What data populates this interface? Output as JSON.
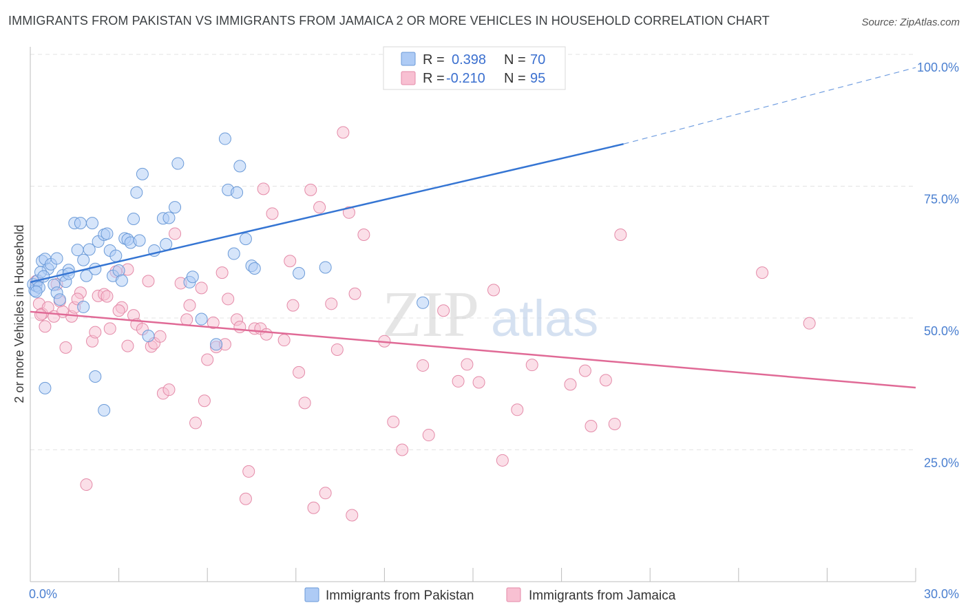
{
  "title": "IMMIGRANTS FROM PAKISTAN VS IMMIGRANTS FROM JAMAICA 2 OR MORE VEHICLES IN HOUSEHOLD CORRELATION CHART",
  "source": "Source: ZipAtlas.com",
  "watermark": {
    "zip": "ZIP",
    "atlas": "atlas"
  },
  "legend_top": {
    "rows": [
      {
        "r_label": "R =",
        "r_value": "0.398",
        "n_label": "N =",
        "n_value": "70"
      },
      {
        "r_label": "R =",
        "r_value": "-0.210",
        "n_label": "N =",
        "n_value": "95"
      }
    ]
  },
  "colors": {
    "pakistan_fill": "#aecbf5",
    "pakistan_stroke": "#6a9ad8",
    "pakistan_line": "#3575d3",
    "jamaica_fill": "#f8c0d2",
    "jamaica_stroke": "#e48aa8",
    "jamaica_line": "#e06a96",
    "tick_label": "#4a7fd0",
    "grid": "#e3e3e3"
  },
  "chart_data": {
    "type": "scatter",
    "title": "IMMIGRANTS FROM PAKISTAN VS IMMIGRANTS FROM JAMAICA 2 OR MORE VEHICLES IN HOUSEHOLD CORRELATION CHART",
    "xlabel": "",
    "ylabel": "2 or more Vehicles in Household",
    "xlim": [
      0,
      30
    ],
    "ylim": [
      0,
      100
    ],
    "x_tick_labels": [
      "0.0%",
      "30.0%"
    ],
    "y_ticks": [
      25,
      50,
      75,
      100
    ],
    "y_tick_labels": [
      "25.0%",
      "50.0%",
      "75.0%",
      "100.0%"
    ],
    "grid": true,
    "legend_position": "bottom",
    "series": [
      {
        "name": "Immigrants from Pakistan",
        "r": 0.398,
        "n": 70,
        "trend": {
          "x": [
            0,
            20.1
          ],
          "y": [
            56.8,
            83.0
          ],
          "dashed_to": [
            30,
            97.5
          ]
        },
        "points": [
          [
            0.1,
            56.4
          ],
          [
            0.15,
            55.2
          ],
          [
            0.2,
            56.1
          ],
          [
            0.25,
            57.1
          ],
          [
            0.3,
            55.8
          ],
          [
            0.4,
            60.8
          ],
          [
            0.5,
            61.2
          ],
          [
            0.6,
            59.3
          ],
          [
            0.7,
            60.2
          ],
          [
            0.8,
            56.3
          ],
          [
            0.9,
            54.8
          ],
          [
            1.0,
            53.5
          ],
          [
            1.1,
            58.1
          ],
          [
            1.2,
            56.9
          ],
          [
            1.3,
            59.1
          ],
          [
            1.5,
            68.0
          ],
          [
            1.6,
            62.9
          ],
          [
            1.7,
            68.0
          ],
          [
            1.8,
            61.0
          ],
          [
            1.9,
            58.0
          ],
          [
            2.0,
            63.0
          ],
          [
            2.1,
            68.0
          ],
          [
            2.2,
            59.3
          ],
          [
            2.3,
            64.5
          ],
          [
            2.5,
            65.8
          ],
          [
            2.6,
            66.0
          ],
          [
            2.7,
            62.8
          ],
          [
            2.8,
            58.0
          ],
          [
            2.9,
            61.8
          ],
          [
            3.0,
            59.0
          ],
          [
            3.1,
            57.1
          ],
          [
            3.2,
            65.1
          ],
          [
            3.3,
            64.9
          ],
          [
            3.4,
            64.3
          ],
          [
            3.5,
            68.8
          ],
          [
            3.6,
            73.8
          ],
          [
            3.7,
            64.7
          ],
          [
            3.8,
            77.3
          ],
          [
            4.0,
            46.6
          ],
          [
            4.2,
            62.8
          ],
          [
            4.5,
            68.9
          ],
          [
            4.6,
            64.0
          ],
          [
            4.7,
            69.0
          ],
          [
            4.9,
            71.0
          ],
          [
            5.0,
            79.3
          ],
          [
            5.4,
            56.8
          ],
          [
            5.5,
            57.8
          ],
          [
            5.8,
            49.8
          ],
          [
            6.3,
            45.0
          ],
          [
            6.6,
            84.0
          ],
          [
            6.7,
            74.3
          ],
          [
            6.9,
            62.2
          ],
          [
            7.0,
            73.8
          ],
          [
            7.1,
            78.8
          ],
          [
            7.3,
            65.0
          ],
          [
            7.5,
            59.9
          ],
          [
            7.6,
            59.4
          ],
          [
            9.1,
            58.5
          ],
          [
            10.0,
            59.6
          ],
          [
            13.3,
            52.9
          ],
          [
            16.2,
            100.0
          ],
          [
            0.5,
            36.7
          ],
          [
            2.2,
            38.9
          ],
          [
            2.5,
            32.5
          ],
          [
            1.8,
            52.1
          ],
          [
            1.3,
            58.4
          ],
          [
            0.9,
            61.3
          ],
          [
            0.35,
            58.7
          ],
          [
            0.45,
            57.9
          ],
          [
            0.2,
            55.0
          ]
        ]
      },
      {
        "name": "Immigrants from Jamaica",
        "r": -0.21,
        "n": 95,
        "trend": {
          "x": [
            0,
            30
          ],
          "y": [
            51.2,
            36.8
          ]
        },
        "points": [
          [
            0.2,
            57.0
          ],
          [
            0.3,
            52.7
          ],
          [
            0.4,
            50.8
          ],
          [
            0.5,
            48.4
          ],
          [
            0.6,
            52.0
          ],
          [
            0.8,
            50.3
          ],
          [
            1.0,
            53.2
          ],
          [
            1.2,
            44.4
          ],
          [
            1.4,
            50.3
          ],
          [
            1.5,
            52.0
          ],
          [
            1.7,
            54.8
          ],
          [
            1.9,
            18.4
          ],
          [
            2.1,
            45.6
          ],
          [
            2.3,
            54.2
          ],
          [
            2.5,
            54.5
          ],
          [
            2.7,
            48.0
          ],
          [
            2.9,
            58.8
          ],
          [
            3.1,
            52.0
          ],
          [
            3.3,
            44.7
          ],
          [
            3.5,
            50.5
          ],
          [
            3.6,
            48.8
          ],
          [
            3.8,
            47.9
          ],
          [
            4.0,
            57.0
          ],
          [
            4.1,
            44.6
          ],
          [
            4.2,
            45.2
          ],
          [
            4.4,
            46.5
          ],
          [
            4.5,
            35.7
          ],
          [
            4.7,
            36.4
          ],
          [
            4.9,
            66.0
          ],
          [
            5.1,
            56.6
          ],
          [
            5.3,
            49.7
          ],
          [
            5.4,
            52.4
          ],
          [
            5.6,
            30.1
          ],
          [
            5.8,
            55.7
          ],
          [
            5.9,
            34.3
          ],
          [
            6.0,
            42.1
          ],
          [
            6.2,
            49.1
          ],
          [
            6.3,
            44.5
          ],
          [
            6.5,
            58.6
          ],
          [
            6.6,
            45.0
          ],
          [
            6.7,
            53.6
          ],
          [
            7.0,
            49.7
          ],
          [
            7.1,
            48.3
          ],
          [
            7.3,
            15.7
          ],
          [
            7.4,
            20.9
          ],
          [
            7.6,
            48.0
          ],
          [
            7.8,
            48.0
          ],
          [
            7.9,
            74.5
          ],
          [
            8.0,
            46.9
          ],
          [
            8.2,
            69.8
          ],
          [
            8.6,
            45.8
          ],
          [
            8.8,
            60.8
          ],
          [
            8.9,
            52.4
          ],
          [
            9.1,
            39.7
          ],
          [
            9.3,
            33.9
          ],
          [
            9.5,
            74.3
          ],
          [
            9.6,
            14.0
          ],
          [
            9.8,
            71.0
          ],
          [
            10.0,
            16.8
          ],
          [
            10.2,
            52.7
          ],
          [
            10.4,
            44.0
          ],
          [
            10.6,
            85.2
          ],
          [
            10.8,
            70.0
          ],
          [
            10.9,
            12.6
          ],
          [
            11.0,
            54.6
          ],
          [
            11.3,
            65.8
          ],
          [
            12.0,
            45.6
          ],
          [
            12.3,
            30.3
          ],
          [
            12.6,
            25.0
          ],
          [
            13.3,
            41.0
          ],
          [
            13.5,
            27.8
          ],
          [
            14.0,
            51.4
          ],
          [
            14.5,
            38.0
          ],
          [
            14.8,
            41.2
          ],
          [
            15.2,
            37.8
          ],
          [
            15.7,
            55.3
          ],
          [
            16.0,
            23.0
          ],
          [
            16.5,
            32.6
          ],
          [
            17.0,
            41.1
          ],
          [
            18.3,
            37.4
          ],
          [
            18.8,
            40.0
          ],
          [
            19.0,
            29.5
          ],
          [
            19.5,
            38.2
          ],
          [
            19.8,
            29.9
          ],
          [
            20.0,
            65.8
          ],
          [
            24.8,
            58.6
          ],
          [
            26.4,
            49.0
          ],
          [
            0.9,
            56.4
          ],
          [
            1.1,
            51.2
          ],
          [
            1.6,
            53.6
          ],
          [
            2.2,
            47.3
          ],
          [
            3.0,
            51.4
          ],
          [
            2.6,
            54.1
          ],
          [
            3.3,
            59.2
          ],
          [
            0.35,
            50.6
          ]
        ]
      }
    ]
  },
  "bottom_legend": [
    {
      "label": "Immigrants from Pakistan"
    },
    {
      "label": "Immigrants from Jamaica"
    }
  ]
}
